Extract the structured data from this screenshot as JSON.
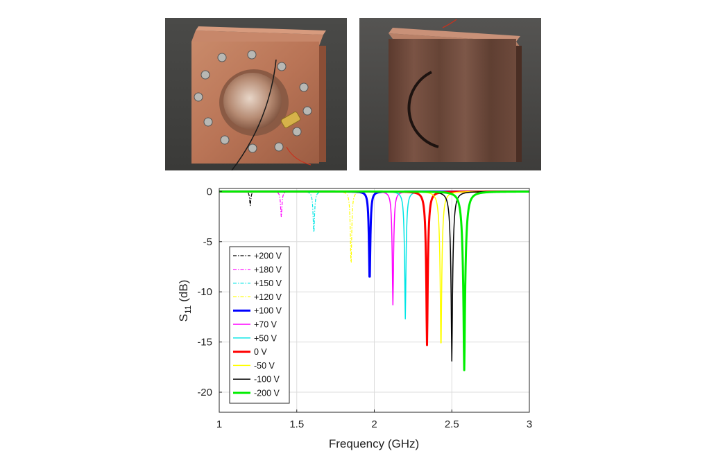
{
  "figure": {
    "photos": [
      {
        "name": "copper-cavity-front",
        "depicts": "copper cavity block with bolts, circular opening and coaxial connector"
      },
      {
        "name": "copper-cavity-side",
        "depicts": "copper block face with curved slot"
      }
    ]
  },
  "chart_data": {
    "type": "line",
    "xlabel": "Frequency (GHz)",
    "ylabel_main": "S",
    "ylabel_sub": "11",
    "ylabel_unit": " (dB)",
    "xlim": [
      1,
      3
    ],
    "ylim": [
      -22,
      0.3
    ],
    "xticks": [
      1,
      1.5,
      2,
      2.5,
      3
    ],
    "xtick_labels": [
      "1",
      "1.5",
      "2",
      "2.5",
      "3"
    ],
    "yticks": [
      0,
      -5,
      -10,
      -15,
      -20
    ],
    "ytick_labels": [
      "0",
      "-5",
      "-10",
      "-15",
      "-20"
    ],
    "grid": true,
    "legend_position": "bottom-left",
    "series": [
      {
        "name": "+200 V",
        "color": "#000000",
        "dash": "dashdot",
        "width": 1.2,
        "f0": 1.2,
        "min_db": -1.4,
        "q": 0.005
      },
      {
        "name": "+180 V",
        "color": "#ff00ff",
        "dash": "dashdot",
        "width": 1.2,
        "f0": 1.4,
        "min_db": -2.5,
        "q": 0.006
      },
      {
        "name": "+150 V",
        "color": "#00e5e5",
        "dash": "dashdot",
        "width": 1.2,
        "f0": 1.61,
        "min_db": -4.2,
        "q": 0.007
      },
      {
        "name": "+120 V",
        "color": "#ffff00",
        "dash": "dashdot",
        "width": 1.2,
        "f0": 1.85,
        "min_db": -7.4,
        "q": 0.008
      },
      {
        "name": "+100 V",
        "color": "#0000ff",
        "dash": "solid",
        "width": 3,
        "f0": 1.97,
        "min_db": -8.9,
        "q": 0.009
      },
      {
        "name": "+70 V",
        "color": "#ff00ff",
        "dash": "solid",
        "width": 1.5,
        "f0": 2.12,
        "min_db": -11.3,
        "q": 0.01
      },
      {
        "name": "+50 V",
        "color": "#00e5e5",
        "dash": "solid",
        "width": 1.5,
        "f0": 2.2,
        "min_db": -12.7,
        "q": 0.011
      },
      {
        "name": "0 V",
        "color": "#ff0000",
        "dash": "solid",
        "width": 3,
        "f0": 2.34,
        "min_db": -15.3,
        "q": 0.014
      },
      {
        "name": "-50 V",
        "color": "#ffff00",
        "dash": "solid",
        "width": 1.5,
        "f0": 2.43,
        "min_db": -15.9,
        "q": 0.015
      },
      {
        "name": "-100 V",
        "color": "#000000",
        "dash": "solid",
        "width": 1.5,
        "f0": 2.5,
        "min_db": -16.9,
        "q": 0.016
      },
      {
        "name": "-200 V",
        "color": "#00ee00",
        "dash": "solid",
        "width": 3,
        "f0": 2.58,
        "min_db": -17.8,
        "q": 0.02
      }
    ]
  }
}
